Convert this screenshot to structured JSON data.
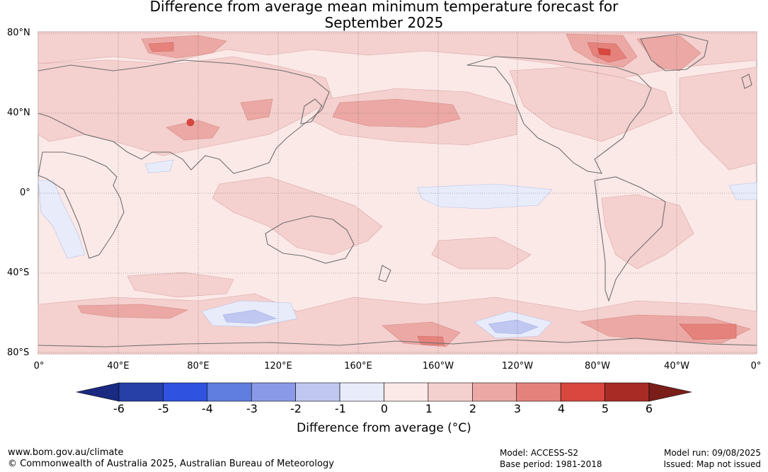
{
  "title_line1": "Difference from average mean minimum temperature forecast for",
  "title_line2": "September 2025",
  "lat_labels": [
    "80°N",
    "40°N",
    "0°",
    "40°S",
    "80°S"
  ],
  "lon_labels": [
    "0°",
    "40°E",
    "80°E",
    "120°E",
    "160°E",
    "160°W",
    "120°W",
    "80°W",
    "40°W",
    "0°"
  ],
  "colorbar": {
    "ticks": [
      "-6",
      "-5",
      "-4",
      "-3",
      "-2",
      "-1",
      "0",
      "1",
      "2",
      "3",
      "4",
      "5",
      "6"
    ],
    "label": "Difference from average (°C)",
    "colors": [
      "#2640a8",
      "#2f52e0",
      "#5f7ee0",
      "#8b9ae8",
      "#c0c8f2",
      "#e8ecfa",
      "#fbe9e8",
      "#f4d0ce",
      "#eca8a4",
      "#e6827c",
      "#d9473e",
      "#a92b26"
    ],
    "low_extend_color": "#1a2a80",
    "high_extend_color": "#7a1e1a"
  },
  "footer": {
    "website": "www.bom.gov.au/climate",
    "copyright": "© Commonwealth of Australia 2025, Australian Bureau of Meteorology",
    "model": "Model: ACCESS-S2",
    "base_period": "Base period: 1981-2018",
    "model_run": "Model run: 09/08/2025",
    "issued": "Issued: Map not issued"
  },
  "map_colors": {
    "ocean_base": "#fbe9e8",
    "anomaly_1_2": "#f4d0ce",
    "anomaly_2_3": "#eca8a4",
    "anomaly_3_4": "#e6827c",
    "anomaly_4_5": "#d9473e",
    "anomaly_neg": "#e8ecfa",
    "anomaly_neg2": "#c0c8f2",
    "coast": "#707070"
  }
}
